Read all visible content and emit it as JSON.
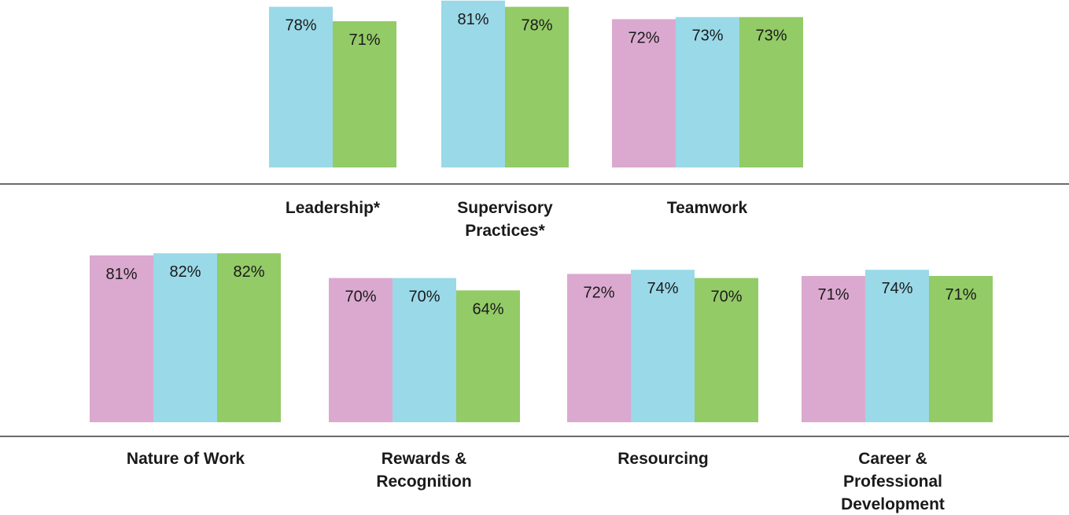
{
  "chart_data": [
    {
      "type": "bar",
      "ylim": [
        0,
        100
      ],
      "colors": [
        "#dba9cf",
        "#9ad9e8",
        "#93cb67"
      ],
      "groups": [
        {
          "category": "Leadership*",
          "bars": [
            {
              "series_index": 1,
              "value": 78,
              "label": "78%"
            },
            {
              "series_index": 2,
              "value": 71,
              "label": "71%"
            }
          ]
        },
        {
          "category": "Supervisory Practices*",
          "bars": [
            {
              "series_index": 1,
              "value": 81,
              "label": "81%"
            },
            {
              "series_index": 2,
              "value": 78,
              "label": "78%"
            }
          ]
        },
        {
          "category": "Teamwork",
          "bars": [
            {
              "series_index": 0,
              "value": 72,
              "label": "72%"
            },
            {
              "series_index": 1,
              "value": 73,
              "label": "73%"
            },
            {
              "series_index": 2,
              "value": 73,
              "label": "73%"
            }
          ]
        }
      ]
    },
    {
      "type": "bar",
      "ylim": [
        0,
        100
      ],
      "colors": [
        "#dba9cf",
        "#9ad9e8",
        "#93cb67"
      ],
      "groups": [
        {
          "category": "Nature of Work",
          "bars": [
            {
              "series_index": 0,
              "value": 81,
              "label": "81%"
            },
            {
              "series_index": 1,
              "value": 82,
              "label": "82%"
            },
            {
              "series_index": 2,
              "value": 82,
              "label": "82%"
            }
          ]
        },
        {
          "category": "Rewards & Recognition",
          "bars": [
            {
              "series_index": 0,
              "value": 70,
              "label": "70%"
            },
            {
              "series_index": 1,
              "value": 70,
              "label": "70%"
            },
            {
              "series_index": 2,
              "value": 64,
              "label": "64%"
            }
          ]
        },
        {
          "category": "Resourcing",
          "bars": [
            {
              "series_index": 0,
              "value": 72,
              "label": "72%"
            },
            {
              "series_index": 1,
              "value": 74,
              "label": "74%"
            },
            {
              "series_index": 2,
              "value": 70,
              "label": "70%"
            }
          ]
        },
        {
          "category": "Career & Professional Development",
          "bars": [
            {
              "series_index": 0,
              "value": 71,
              "label": "71%"
            },
            {
              "series_index": 1,
              "value": 74,
              "label": "74%"
            },
            {
              "series_index": 2,
              "value": 71,
              "label": "71%"
            }
          ]
        }
      ]
    }
  ]
}
